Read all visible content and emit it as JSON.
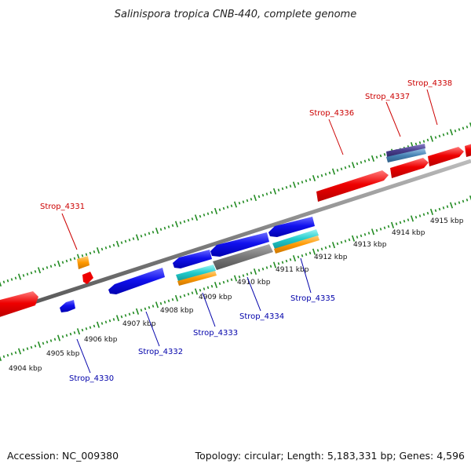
{
  "title": "Salinispora tropica CNB-440, complete genome",
  "footer": {
    "accession": "Accession: NC_009380",
    "topology": "Topology: circular; Length: 5,183,331 bp; Genes: 4,596"
  },
  "colors": {
    "forward_label": "#cc0000",
    "reverse_label": "#0000aa",
    "backbone": "#888888",
    "tick_dots": "#228b22",
    "forward_gene": "#ee0000",
    "reverse_gene": "#1111ee",
    "orange_gene": "#ff9900",
    "cyan_gene": "#22cccc",
    "gray_gene": "#777777",
    "purple_gene": "#4b3f8f",
    "steel_gene": "#4682b4"
  },
  "kbp_labels": [
    "4904 kbp",
    "4905 kbp",
    "4906 kbp",
    "4907 kbp",
    "4908 kbp",
    "4909 kbp",
    "4910 kbp",
    "4911 kbp",
    "4912 kbp",
    "4913 kbp",
    "4914 kbp",
    "4915 kbp"
  ],
  "forward_gene_labels": [
    "Strop_4331",
    "Strop_4336",
    "Strop_4337",
    "Strop_4338"
  ],
  "reverse_gene_labels": [
    "Strop_4330",
    "Strop_4332",
    "Strop_4333",
    "Strop_4334",
    "Strop_4335"
  ]
}
